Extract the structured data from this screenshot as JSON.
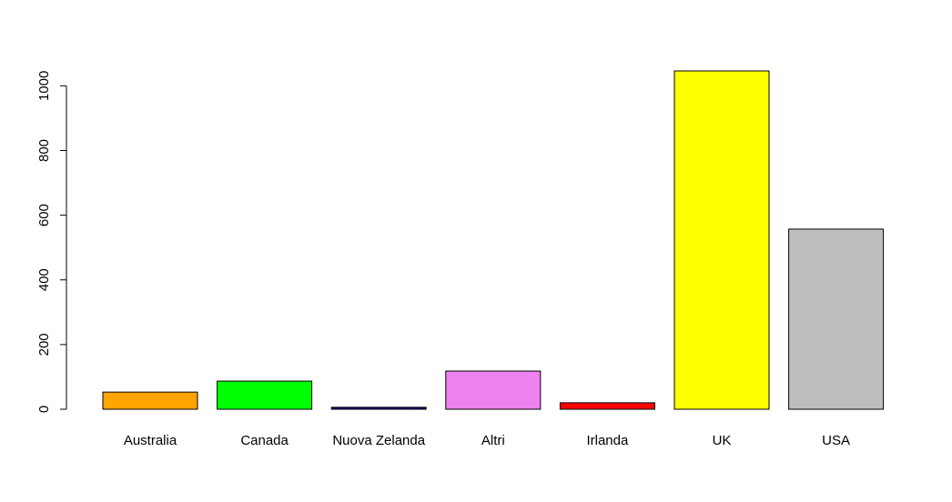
{
  "chart_data": {
    "type": "bar",
    "title": "",
    "xlabel": "",
    "ylabel": "",
    "categories": [
      "Australia",
      "Canada",
      "Nuova Zelanda",
      "Altri",
      "Irlanda",
      "UK",
      "USA"
    ],
    "values": [
      53,
      87,
      6,
      118,
      20,
      1046,
      557
    ],
    "colors": [
      "#FFA500",
      "#00FF00",
      "#000080",
      "#EE82EE",
      "#FF0000",
      "#FFFF00",
      "#BEBEBE"
    ],
    "ylim": [
      0,
      1046
    ],
    "yticks": [
      0,
      200,
      400,
      600,
      800,
      1000
    ],
    "grid": false,
    "legend": "none"
  }
}
